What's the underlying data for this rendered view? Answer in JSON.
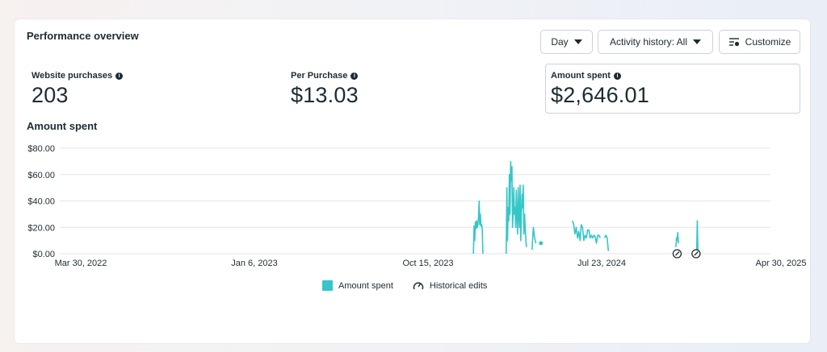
{
  "header": {
    "title": "Performance overview",
    "day_label": "Day",
    "activity_label": "Activity history: All",
    "customize_label": "Customize"
  },
  "metrics": [
    {
      "label": "Website purchases",
      "value": "203"
    },
    {
      "label": "Per Purchase",
      "value": "$13.03"
    },
    {
      "label": "Amount spent",
      "value": "$2,646.01"
    }
  ],
  "chart_title": "Amount spent",
  "legend": {
    "amount_label": "Amount spent",
    "edits_label": "Historical edits"
  },
  "colors": {
    "series": "#34c7c7",
    "grid": "#e4e6eb",
    "text": "#1c2b33"
  },
  "icons": {
    "dropdown": "caret-down-icon",
    "customize": "sliders-icon",
    "info": "info-icon",
    "edit": "historical-edit-icon"
  },
  "chart_data": {
    "type": "line",
    "title": "Amount spent",
    "xlabel": "",
    "ylabel": "",
    "ylim": [
      0,
      80
    ],
    "y_ticks": [
      "$0.00",
      "$20.00",
      "$40.00",
      "$60.00",
      "$80.00"
    ],
    "x_ticks": [
      "Mar 30, 2022",
      "Jan 6, 2023",
      "Oct 15, 2023",
      "Jul 23, 2024",
      "Apr 30, 2025"
    ],
    "grid": true,
    "legend": "bottom",
    "series": [
      {
        "name": "Amount spent",
        "segments": [
          [
            [
              "2024-01-15",
              0
            ],
            [
              "2024-01-16",
              21
            ],
            [
              "2024-01-17",
              10
            ],
            [
              "2024-01-18",
              24
            ],
            [
              "2024-01-19",
              19
            ],
            [
              "2024-01-20",
              25
            ],
            [
              "2024-01-21",
              20
            ],
            [
              "2024-01-22",
              22
            ],
            [
              "2024-01-23",
              28
            ],
            [
              "2024-01-24",
              40
            ],
            [
              "2024-01-25",
              22
            ],
            [
              "2024-01-26",
              30
            ],
            [
              "2024-01-27",
              21
            ],
            [
              "2024-01-28",
              22
            ],
            [
              "2024-01-29",
              18
            ],
            [
              "2024-01-30",
              0
            ]
          ],
          [
            [
              "2024-03-07",
              0
            ],
            [
              "2024-03-08",
              50
            ],
            [
              "2024-03-09",
              10
            ],
            [
              "2024-03-10",
              35
            ],
            [
              "2024-03-11",
              25
            ],
            [
              "2024-03-12",
              60
            ],
            [
              "2024-03-13",
              30
            ],
            [
              "2024-03-14",
              70
            ],
            [
              "2024-03-15",
              55
            ],
            [
              "2024-03-16",
              66
            ],
            [
              "2024-03-17",
              20
            ],
            [
              "2024-03-18",
              30
            ],
            [
              "2024-03-19",
              50
            ],
            [
              "2024-03-20",
              30
            ],
            [
              "2024-03-21",
              35
            ],
            [
              "2024-03-22",
              20
            ],
            [
              "2024-03-23",
              48
            ],
            [
              "2024-03-24",
              28
            ],
            [
              "2024-03-25",
              15
            ],
            [
              "2024-03-26",
              50
            ],
            [
              "2024-03-27",
              30
            ],
            [
              "2024-03-28",
              20
            ],
            [
              "2024-03-29",
              52
            ],
            [
              "2024-03-30",
              10
            ],
            [
              "2024-03-31",
              30
            ],
            [
              "2024-04-01",
              45
            ],
            [
              "2024-04-02",
              35
            ],
            [
              "2024-04-03",
              52
            ],
            [
              "2024-04-04",
              15
            ],
            [
              "2024-04-05",
              30
            ],
            [
              "2024-04-06",
              20
            ],
            [
              "2024-04-07",
              12
            ],
            [
              "2024-04-08",
              5
            ]
          ],
          [
            [
              "2024-04-17",
              3
            ],
            [
              "2024-04-19",
              20
            ],
            [
              "2024-04-21",
              12
            ],
            [
              "2024-04-23",
              8
            ]
          ],
          [
            [
              "2024-06-20",
              25
            ],
            [
              "2024-06-22",
              22
            ],
            [
              "2024-06-24",
              15
            ],
            [
              "2024-06-26",
              20
            ],
            [
              "2024-06-28",
              12
            ],
            [
              "2024-06-30",
              17
            ],
            [
              "2024-07-02",
              10
            ],
            [
              "2024-07-04",
              22
            ],
            [
              "2024-07-06",
              20
            ],
            [
              "2024-07-08",
              10
            ],
            [
              "2024-07-10",
              14
            ],
            [
              "2024-07-12",
              12
            ],
            [
              "2024-07-14",
              18
            ],
            [
              "2024-07-16",
              18
            ],
            [
              "2024-07-18",
              12
            ],
            [
              "2024-07-20",
              14
            ],
            [
              "2024-07-22",
              12
            ],
            [
              "2024-07-24",
              14
            ],
            [
              "2024-07-26",
              13
            ],
            [
              "2024-07-28",
              8
            ],
            [
              "2024-07-30",
              14
            ],
            [
              "2024-08-01",
              14
            ],
            [
              "2024-08-03",
              12
            ]
          ],
          [
            [
              "2024-08-10",
              12
            ],
            [
              "2024-08-12",
              14
            ],
            [
              "2024-08-14",
              12
            ],
            [
              "2024-08-16",
              2
            ]
          ],
          [
            [
              "2024-12-01",
              5
            ],
            [
              "2024-12-02",
              12
            ],
            [
              "2024-12-03",
              10
            ],
            [
              "2024-12-04",
              16
            ],
            [
              "2024-12-05",
              8
            ]
          ],
          [
            [
              "2025-01-03",
              0
            ],
            [
              "2025-01-04",
              25
            ],
            [
              "2025-01-05",
              0
            ]
          ]
        ],
        "points": [
          [
            "2024-05-01",
            8
          ]
        ]
      }
    ],
    "edits": [
      [
        "2024-12-03",
        0
      ],
      [
        "2025-01-02",
        0
      ]
    ]
  }
}
